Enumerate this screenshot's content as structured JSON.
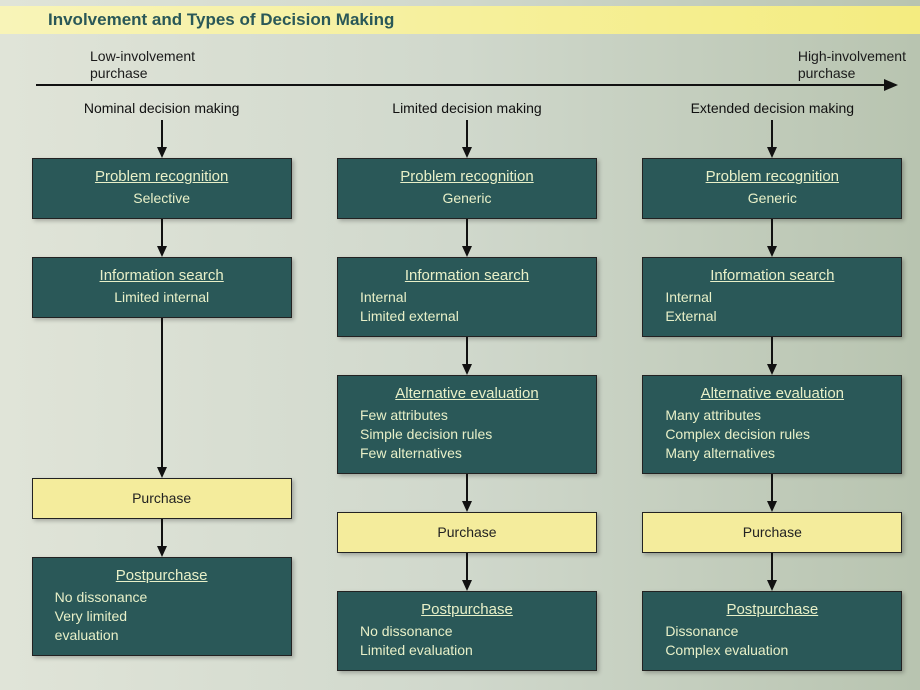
{
  "title": "Involvement and Types of Decision Making",
  "spectrum": {
    "low": "Low-involvement\npurchase",
    "high": "High-involvement\npurchase"
  },
  "colors": {
    "teal": "#2a5858",
    "yellow": "#f4ec9c",
    "tealText": "#e8f0c8",
    "titleBar": "#f4ec80",
    "pageBg": "#d0d8cc"
  },
  "layout": {
    "columns": 3,
    "boxWidth": 260
  },
  "columns": [
    {
      "header": "Nominal decision making",
      "steps": [
        {
          "type": "teal",
          "arrow": 28,
          "title": "Problem recognition",
          "body": "Selective",
          "align": "center"
        },
        {
          "type": "teal",
          "arrow": 28,
          "title": "Information search",
          "body": "Limited internal",
          "align": "center"
        },
        {
          "type": "yellow",
          "arrow": 150,
          "body": "Purchase"
        },
        {
          "type": "teal",
          "arrow": 28,
          "title": "Postpurchase",
          "body": "No dissonance\nVery limited\nevaluation",
          "align": "left"
        }
      ]
    },
    {
      "header": "Limited decision making",
      "steps": [
        {
          "type": "teal",
          "arrow": 28,
          "title": "Problem recognition",
          "body": "Generic",
          "align": "center"
        },
        {
          "type": "teal",
          "arrow": 28,
          "title": "Information search",
          "body": "Internal\nLimited external",
          "align": "left"
        },
        {
          "type": "teal",
          "arrow": 28,
          "title": "Alternative evaluation",
          "body": "Few attributes\nSimple decision rules\nFew alternatives",
          "align": "left"
        },
        {
          "type": "yellow",
          "arrow": 28,
          "body": "Purchase"
        },
        {
          "type": "teal",
          "arrow": 28,
          "title": "Postpurchase",
          "body": "No dissonance\nLimited evaluation",
          "align": "left"
        }
      ]
    },
    {
      "header": "Extended decision making",
      "steps": [
        {
          "type": "teal",
          "arrow": 28,
          "title": "Problem recognition",
          "body": "Generic",
          "align": "center"
        },
        {
          "type": "teal",
          "arrow": 28,
          "title": "Information search",
          "body": "Internal\nExternal",
          "align": "left"
        },
        {
          "type": "teal",
          "arrow": 28,
          "title": "Alternative evaluation",
          "body": "Many attributes\nComplex decision rules\nMany alternatives",
          "align": "left"
        },
        {
          "type": "yellow",
          "arrow": 28,
          "body": "Purchase"
        },
        {
          "type": "teal",
          "arrow": 28,
          "title": "Postpurchase",
          "body": "Dissonance\nComplex evaluation",
          "align": "left"
        }
      ]
    }
  ]
}
